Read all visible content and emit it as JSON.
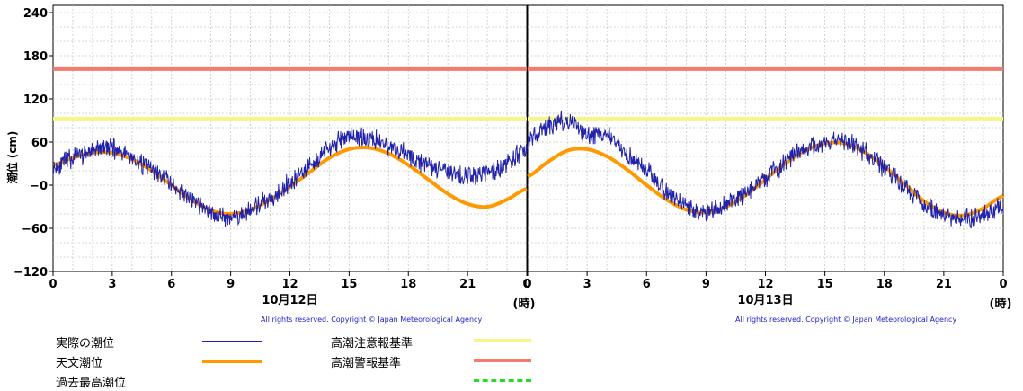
{
  "chart_data": [
    {
      "type": "line",
      "panel": "10月12日",
      "ylabel": "潮位 (cm)",
      "ylim": [
        -120,
        250
      ],
      "yticks": [
        "240",
        "180",
        "120",
        "60",
        "−0",
        "−60",
        "−120"
      ],
      "xticks": [
        "0",
        "3",
        "6",
        "9",
        "12",
        "15",
        "18",
        "21",
        "0"
      ],
      "xlabel": "10月12日",
      "xunit": "(時)",
      "copyright": "All rights reserved. Copyright © Japan Meteorological Agency",
      "thresholds": [
        {
          "name": "高潮注意報基準",
          "value": 92,
          "color": "#f5f58a"
        },
        {
          "name": "高潮警報基準",
          "value": 162,
          "color": "#f47a6e"
        }
      ],
      "series": [
        {
          "name": "天文潮位",
          "color": "#ff9900",
          "x": [
            0,
            1,
            2,
            3,
            4,
            5,
            6,
            7,
            8,
            9,
            10,
            11,
            12,
            13,
            14,
            15,
            16,
            17,
            18,
            19,
            20,
            21,
            22,
            23,
            24
          ],
          "values": [
            28,
            38,
            45,
            45,
            36,
            20,
            0,
            -20,
            -35,
            -40,
            -34,
            -20,
            -2,
            18,
            38,
            50,
            52,
            44,
            28,
            8,
            -12,
            -26,
            -30,
            -20,
            -5
          ]
        },
        {
          "name": "実際の潮位",
          "color": "#2222aa",
          "x": [
            0,
            1,
            2,
            3,
            4,
            5,
            6,
            7,
            8,
            9,
            10,
            11,
            12,
            13,
            14,
            15,
            16,
            17,
            18,
            19,
            20,
            21,
            22,
            23,
            24
          ],
          "values": [
            25,
            38,
            48,
            52,
            38,
            22,
            2,
            -20,
            -38,
            -44,
            -36,
            -18,
            4,
            28,
            52,
            68,
            64,
            55,
            42,
            28,
            18,
            12,
            18,
            30,
            50
          ]
        }
      ]
    },
    {
      "type": "line",
      "panel": "10月13日",
      "ylim": [
        -120,
        250
      ],
      "xticks": [
        "0",
        "3",
        "6",
        "9",
        "12",
        "15",
        "18",
        "21",
        "0"
      ],
      "xlabel": "10月13日",
      "xunit": "(時)",
      "copyright": "All rights reserved. Copyright © Japan Meteorological Agency",
      "thresholds": [
        {
          "name": "高潮注意報基準",
          "value": 92,
          "color": "#f5f58a"
        },
        {
          "name": "高潮警報基準",
          "value": 162,
          "color": "#f47a6e"
        }
      ],
      "series": [
        {
          "name": "天文潮位",
          "color": "#ff9900",
          "x": [
            0,
            1,
            2,
            3,
            4,
            5,
            6,
            7,
            8,
            9,
            10,
            11,
            12,
            13,
            14,
            15,
            16,
            17,
            18,
            19,
            20,
            21,
            22,
            23,
            24
          ],
          "values": [
            12,
            32,
            48,
            50,
            40,
            22,
            0,
            -20,
            -34,
            -38,
            -30,
            -14,
            8,
            30,
            48,
            58,
            58,
            46,
            26,
            2,
            -22,
            -38,
            -42,
            -32,
            -15
          ]
        },
        {
          "name": "実際の潮位",
          "color": "#2222aa",
          "x": [
            0,
            1,
            2,
            3,
            4,
            5,
            6,
            7,
            8,
            9,
            10,
            11,
            12,
            13,
            14,
            15,
            16,
            17,
            18,
            19,
            20,
            21,
            22,
            23,
            24
          ],
          "values": [
            65,
            80,
            90,
            72,
            68,
            45,
            20,
            -8,
            -28,
            -38,
            -28,
            -10,
            10,
            32,
            50,
            58,
            60,
            46,
            24,
            0,
            -26,
            -42,
            -46,
            -40,
            -28
          ]
        }
      ]
    }
  ],
  "legend": {
    "actual_label": "実際の潮位",
    "astro_label": "天文潮位",
    "record_label": "過去最高潮位",
    "advisory_label": "高潮注意報基準",
    "warning_label": "高潮警報基準",
    "actual_color": "#2222aa",
    "astro_color": "#ff9900",
    "record_color": "#22dd22",
    "advisory_color": "#f5f58a",
    "warning_color": "#f47a6e"
  }
}
